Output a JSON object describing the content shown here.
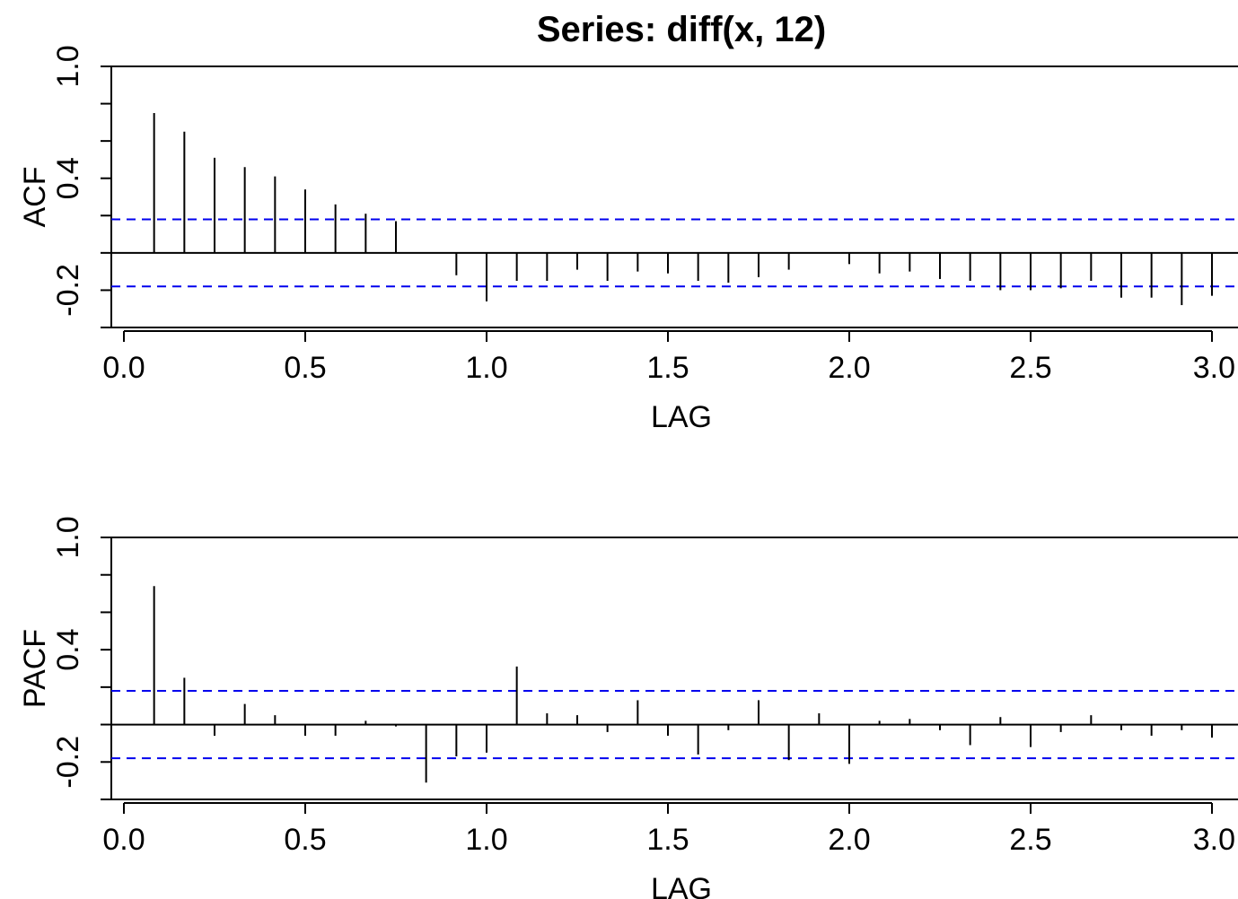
{
  "title": "Series:  diff(x, 12)",
  "colors": {
    "spike": "#000000",
    "confidence_band": "#0000ee",
    "axis": "#000000",
    "background": "#ffffff"
  },
  "chart_data": [
    {
      "type": "bar",
      "ylabel": "ACF",
      "xlabel": "LAG",
      "xlim": [
        0.0,
        3.0
      ],
      "ylim": [
        -0.4,
        1.0
      ],
      "xticks": [
        "0.0",
        "0.5",
        "1.0",
        "1.5",
        "2.0",
        "2.5",
        "3.0"
      ],
      "yticks": [
        "-0.2",
        "0.4",
        "1.0"
      ],
      "confidence_band": [
        0.18,
        -0.18
      ],
      "x": [
        0.0833,
        0.1667,
        0.25,
        0.3333,
        0.4167,
        0.5,
        0.5833,
        0.6667,
        0.75,
        0.8333,
        0.9167,
        1.0,
        1.0833,
        1.1667,
        1.25,
        1.3333,
        1.4167,
        1.5,
        1.5833,
        1.6667,
        1.75,
        1.8333,
        1.9167,
        2.0,
        2.0833,
        2.1667,
        2.25,
        2.3333,
        2.4167,
        2.5,
        2.5833,
        2.6667,
        2.75,
        2.8333,
        2.9167,
        3.0
      ],
      "values": [
        0.75,
        0.65,
        0.51,
        0.46,
        0.41,
        0.34,
        0.26,
        0.21,
        0.17,
        0.0,
        -0.12,
        -0.26,
        -0.15,
        -0.15,
        -0.09,
        -0.15,
        -0.1,
        -0.11,
        -0.15,
        -0.16,
        -0.13,
        -0.09,
        0.0,
        -0.06,
        -0.11,
        -0.1,
        -0.14,
        -0.15,
        -0.2,
        -0.2,
        -0.19,
        -0.15,
        -0.24,
        -0.24,
        -0.28,
        -0.23
      ]
    },
    {
      "type": "bar",
      "ylabel": "PACF",
      "xlabel": "LAG",
      "xlim": [
        0.0,
        3.0
      ],
      "ylim": [
        -0.4,
        1.0
      ],
      "xticks": [
        "0.0",
        "0.5",
        "1.0",
        "1.5",
        "2.0",
        "2.5",
        "3.0"
      ],
      "yticks": [
        "-0.2",
        "0.4",
        "1.0"
      ],
      "confidence_band": [
        0.18,
        -0.18
      ],
      "x": [
        0.0833,
        0.1667,
        0.25,
        0.3333,
        0.4167,
        0.5,
        0.5833,
        0.6667,
        0.75,
        0.8333,
        0.9167,
        1.0,
        1.0833,
        1.1667,
        1.25,
        1.3333,
        1.4167,
        1.5,
        1.5833,
        1.6667,
        1.75,
        1.8333,
        1.9167,
        2.0,
        2.0833,
        2.1667,
        2.25,
        2.3333,
        2.4167,
        2.5,
        2.5833,
        2.6667,
        2.75,
        2.8333,
        2.9167,
        3.0
      ],
      "values": [
        0.74,
        0.25,
        -0.06,
        0.11,
        0.05,
        -0.06,
        -0.06,
        0.02,
        -0.01,
        -0.31,
        -0.17,
        -0.15,
        0.31,
        0.06,
        0.05,
        -0.04,
        0.13,
        -0.06,
        -0.16,
        -0.03,
        0.13,
        -0.19,
        0.06,
        -0.21,
        0.02,
        0.03,
        -0.03,
        -0.11,
        0.04,
        -0.12,
        -0.04,
        0.05,
        -0.03,
        -0.06,
        -0.03,
        -0.07
      ]
    }
  ]
}
